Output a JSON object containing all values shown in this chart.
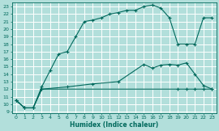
{
  "xlabel": "Humidex (Indice chaleur)",
  "xlim": [
    -0.5,
    23.5
  ],
  "ylim": [
    8.8,
    23.5
  ],
  "xticks": [
    0,
    1,
    2,
    3,
    4,
    5,
    6,
    7,
    8,
    9,
    10,
    11,
    12,
    13,
    14,
    15,
    16,
    17,
    18,
    19,
    20,
    21,
    22,
    23
  ],
  "yticks": [
    9,
    10,
    11,
    12,
    13,
    14,
    15,
    16,
    17,
    18,
    19,
    20,
    21,
    22,
    23
  ],
  "bg_color": "#b2dfdb",
  "grid_color": "#ffffff",
  "line_color": "#00695c",
  "curve1_x": [
    0,
    1,
    2,
    3,
    4,
    5,
    6,
    7,
    8,
    9,
    10,
    11,
    12,
    13,
    14,
    15,
    16,
    17,
    18,
    19,
    20,
    21,
    22,
    23
  ],
  "curve1_y": [
    10.5,
    9.5,
    9.5,
    12.3,
    14.5,
    16.7,
    17.0,
    19.0,
    21.0,
    21.2,
    21.5,
    22.0,
    22.2,
    22.5,
    22.5,
    23.0,
    23.2,
    22.8,
    21.5,
    18.0,
    18.0,
    18.0,
    21.5,
    21.5
  ],
  "curve2_x": [
    0,
    1,
    2,
    3,
    19,
    20,
    21,
    22,
    23
  ],
  "curve2_y": [
    10.5,
    9.5,
    9.5,
    12.0,
    12.0,
    12.0,
    12.0,
    12.0,
    12.0
  ],
  "curve3_x": [
    0,
    1,
    2,
    3,
    6,
    9,
    12,
    15,
    16,
    17,
    18,
    19,
    20,
    21,
    22,
    23
  ],
  "curve3_y": [
    10.5,
    9.5,
    9.5,
    12.0,
    12.3,
    12.7,
    13.0,
    15.3,
    14.8,
    15.2,
    15.3,
    15.2,
    15.5,
    14.0,
    12.5,
    12.0
  ]
}
